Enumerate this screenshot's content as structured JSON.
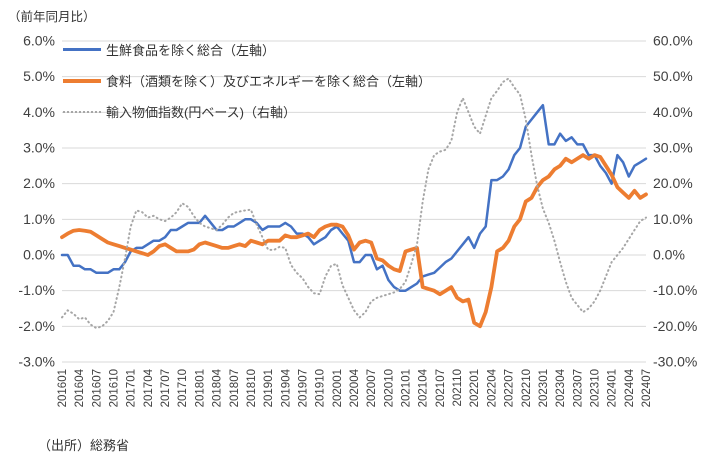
{
  "title": "（前年同月比）",
  "source": "（出所）総務省",
  "colors": {
    "series_core": "#4472C4",
    "series_corecore": "#ED7D31",
    "series_import": "#A6A6A6",
    "gridline": "#D9D9D9",
    "axis_text": "#404040"
  },
  "chart_data": {
    "type": "line",
    "title": "（前年同月比）",
    "grid": true,
    "legend_position": "top-left-inside",
    "x_start": "201601",
    "x_end": "202407",
    "x_tick_labels": [
      "201601",
      "201604",
      "201607",
      "201610",
      "201701",
      "201704",
      "201707",
      "201710",
      "201801",
      "201804",
      "201807",
      "201810",
      "201901",
      "201904",
      "201907",
      "201910",
      "202001",
      "202004",
      "202007",
      "202010",
      "202101",
      "202104",
      "202107",
      "202110",
      "202201",
      "202204",
      "202207",
      "202210",
      "202301",
      "202304",
      "202307",
      "202310",
      "202401",
      "202404",
      "202407"
    ],
    "x_tick_every_n_months": 3,
    "left_axis": {
      "min": -3,
      "max": 6,
      "ticks": [
        "6.0%",
        "5.0%",
        "4.0%",
        "3.0%",
        "2.0%",
        "1.0%",
        "0.0%",
        "-1.0%",
        "-2.0%",
        "-3.0%"
      ]
    },
    "right_axis": {
      "min": -30,
      "max": 60,
      "ticks": [
        "60.0%",
        "50.0%",
        "40.0%",
        "30.0%",
        "20.0%",
        "10.0%",
        "0.0%",
        "-10.0%",
        "-20.0%",
        "-30.0%"
      ]
    },
    "series": [
      {
        "key": "core-cpi",
        "name": "生鮮食品を除く総合（左軸）",
        "axis": "left",
        "color": "#4472C4",
        "width": 2.5,
        "dash": false,
        "values": [
          0.0,
          0.0,
          -0.3,
          -0.3,
          -0.4,
          -0.4,
          -0.5,
          -0.5,
          -0.5,
          -0.4,
          -0.4,
          -0.2,
          0.1,
          0.2,
          0.2,
          0.3,
          0.4,
          0.4,
          0.5,
          0.7,
          0.7,
          0.8,
          0.9,
          0.9,
          0.9,
          1.1,
          0.9,
          0.7,
          0.7,
          0.8,
          0.8,
          0.9,
          1.0,
          1.0,
          0.9,
          0.7,
          0.8,
          0.8,
          0.8,
          0.9,
          0.8,
          0.6,
          0.6,
          0.5,
          0.3,
          0.4,
          0.5,
          0.7,
          0.8,
          0.6,
          0.4,
          -0.2,
          -0.2,
          0.0,
          0.0,
          -0.4,
          -0.3,
          -0.7,
          -0.9,
          -1.0,
          -1.0,
          -0.9,
          -0.8,
          -0.6,
          -0.55,
          -0.5,
          -0.35,
          -0.2,
          -0.1,
          0.1,
          0.3,
          0.5,
          0.2,
          0.6,
          0.8,
          2.1,
          2.1,
          2.2,
          2.4,
          2.8,
          3.0,
          3.6,
          3.8,
          4.0,
          4.2,
          3.1,
          3.1,
          3.4,
          3.2,
          3.3,
          3.1,
          3.1,
          2.8,
          2.8,
          2.5,
          2.3,
          2.0,
          2.8,
          2.6,
          2.2,
          2.5,
          2.6,
          2.7
        ]
      },
      {
        "key": "core-core-cpi",
        "name": "食料（酒類を除く）及びエネルギーを除く総合（左軸）",
        "axis": "left",
        "color": "#ED7D31",
        "width": 3.8,
        "dash": false,
        "values": [
          0.5,
          0.6,
          0.68,
          0.7,
          0.68,
          0.65,
          0.55,
          0.45,
          0.35,
          0.3,
          0.25,
          0.2,
          0.15,
          0.1,
          0.05,
          0.0,
          0.1,
          0.25,
          0.3,
          0.2,
          0.1,
          0.1,
          0.1,
          0.15,
          0.3,
          0.35,
          0.3,
          0.25,
          0.2,
          0.2,
          0.25,
          0.3,
          0.25,
          0.4,
          0.35,
          0.3,
          0.4,
          0.4,
          0.4,
          0.55,
          0.5,
          0.5,
          0.55,
          0.6,
          0.5,
          0.7,
          0.8,
          0.85,
          0.85,
          0.8,
          0.55,
          0.15,
          0.35,
          0.4,
          0.35,
          -0.1,
          -0.15,
          -0.3,
          -0.4,
          -0.45,
          0.1,
          0.15,
          0.2,
          -0.9,
          -0.95,
          -1.0,
          -1.1,
          -1.0,
          -0.9,
          -1.2,
          -1.3,
          -1.25,
          -1.9,
          -2.0,
          -1.6,
          -0.9,
          0.1,
          0.2,
          0.4,
          0.8,
          1.0,
          1.5,
          1.6,
          1.9,
          2.1,
          2.2,
          2.4,
          2.5,
          2.7,
          2.6,
          2.7,
          2.8,
          2.7,
          2.8,
          2.75,
          2.5,
          2.25,
          1.9,
          1.75,
          1.6,
          1.8,
          1.6,
          1.7
        ]
      },
      {
        "key": "import-price-index",
        "name": "輸入物価指数(円ベース)（右軸）",
        "axis": "right",
        "color": "#A6A6A6",
        "width": 2,
        "dash": true,
        "values": [
          -17.5,
          -15.5,
          -16.5,
          -18.0,
          -17.5,
          -19.5,
          -20.5,
          -20.0,
          -18.5,
          -16.0,
          -9.0,
          -1.0,
          8.0,
          12.5,
          12.0,
          10.5,
          11.0,
          10.0,
          9.5,
          10.5,
          12.0,
          14.5,
          13.5,
          11.0,
          9.0,
          8.0,
          7.5,
          7.0,
          8.5,
          10.5,
          11.8,
          12.2,
          12.5,
          12.7,
          8.5,
          5.0,
          1.5,
          1.4,
          2.3,
          2.0,
          -2.8,
          -5.0,
          -6.5,
          -9.0,
          -10.7,
          -11.0,
          -6.0,
          -3.0,
          -2.5,
          -8.5,
          -12.0,
          -15.5,
          -17.5,
          -16.0,
          -13.0,
          -12.0,
          -11.5,
          -11.0,
          -10.5,
          -9.5,
          -7.5,
          -2.5,
          3.0,
          15.0,
          24.0,
          28.0,
          29.0,
          29.5,
          32.0,
          40.0,
          44.0,
          40.0,
          36.0,
          34.0,
          39.0,
          44.0,
          46.0,
          48.5,
          49.5,
          47.0,
          45.0,
          38.0,
          28.0,
          19.5,
          13.0,
          9.0,
          4.0,
          -2.0,
          -7.5,
          -12.0,
          -14.0,
          -16.0,
          -15.0,
          -13.0,
          -10.0,
          -6.0,
          -2.0,
          0.0,
          2.0,
          4.5,
          7.0,
          9.5,
          10.5
        ]
      }
    ]
  }
}
